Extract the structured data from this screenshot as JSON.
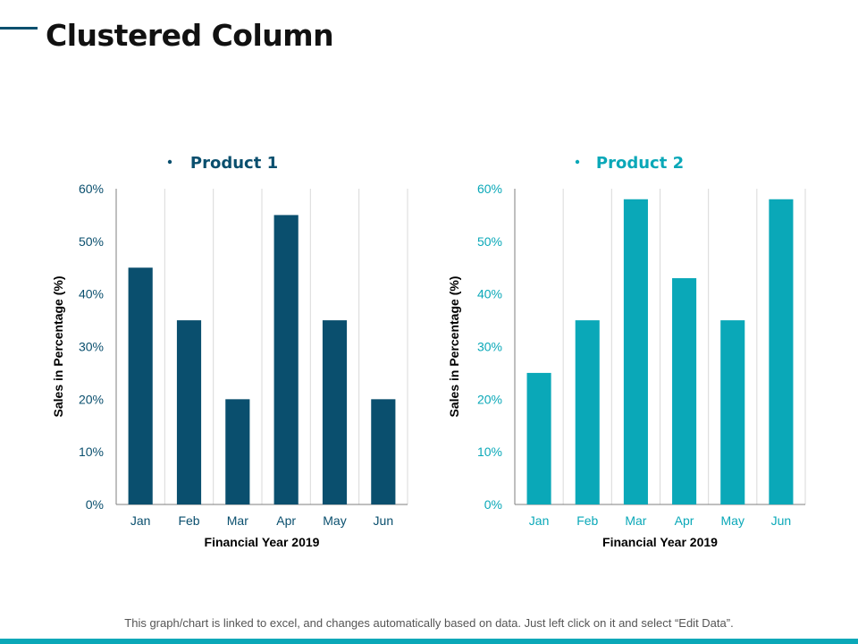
{
  "page": {
    "title": "Clustered Column",
    "footer": "This graph/chart is linked to excel, and changes automatically based on data. Just left click on it and select “Edit Data”."
  },
  "colors": {
    "accent_dark": "#0a4f6e",
    "series1": "#0a4f6e",
    "series2": "#0aa8b8",
    "grid": "#d9d9d9",
    "axis": "#7f7f7f"
  },
  "chart_data": [
    {
      "type": "bar",
      "title": "Product 1",
      "legend": "top",
      "categories": [
        "Jan",
        "Feb",
        "Mar",
        "Apr",
        "May",
        "Jun"
      ],
      "series": [
        {
          "name": "Product 1",
          "values": [
            45,
            35,
            20,
            55,
            35,
            20
          ]
        }
      ],
      "xlabel": "Financial Year 2019",
      "ylabel": "Sales in Percentage (%)",
      "ylim": [
        0,
        60
      ],
      "yticks": [
        "0%",
        "10%",
        "20%",
        "30%",
        "40%",
        "50%",
        "60%"
      ],
      "color": "#0a4f6e",
      "label_color": "#0a4f6e"
    },
    {
      "type": "bar",
      "title": "Product 2",
      "legend": "top",
      "categories": [
        "Jan",
        "Feb",
        "Mar",
        "Apr",
        "May",
        "Jun"
      ],
      "series": [
        {
          "name": "Product 2",
          "values": [
            25,
            35,
            58,
            43,
            35,
            58
          ]
        }
      ],
      "xlabel": "Financial Year 2019",
      "ylabel": "Sales in Percentage (%)",
      "ylim": [
        0,
        60
      ],
      "yticks": [
        "0%",
        "10%",
        "20%",
        "30%",
        "40%",
        "50%",
        "60%"
      ],
      "color": "#0aa8b8",
      "label_color": "#0aa8b8"
    }
  ]
}
